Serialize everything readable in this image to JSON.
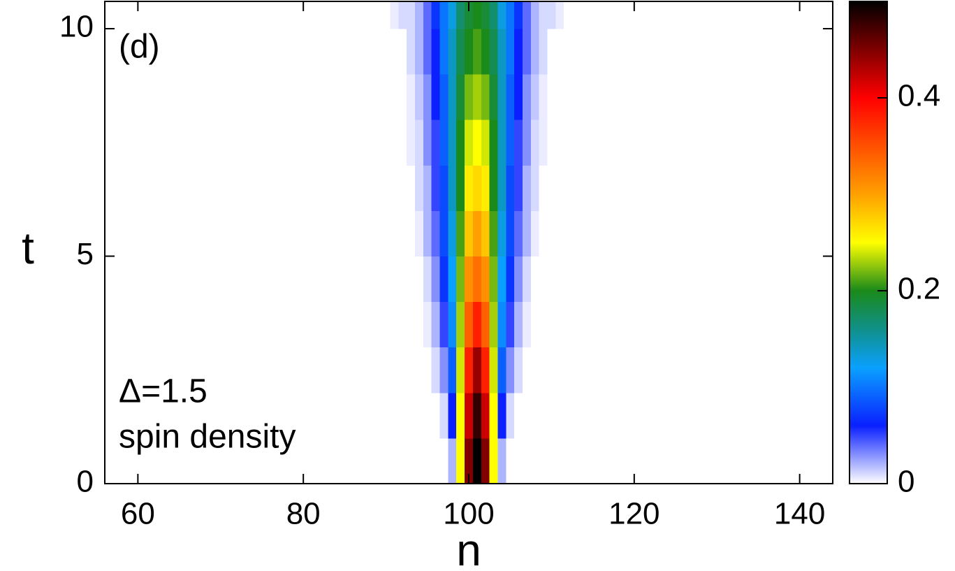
{
  "chart_data": {
    "type": "heatmap",
    "annotations": [
      "(d)",
      "Δ=1.5",
      "spin density"
    ],
    "x_label": "n",
    "y_label": "t",
    "xlim": [
      56,
      144
    ],
    "xticks": [
      60,
      80,
      100,
      120,
      140
    ],
    "ylim": [
      0,
      10.6
    ],
    "yticks": [
      0,
      5,
      10
    ],
    "x": [
      90,
      91,
      92,
      93,
      94,
      95,
      96,
      97,
      98,
      99,
      100,
      101,
      102,
      103,
      104,
      105,
      106,
      107,
      108,
      109,
      110,
      111,
      112
    ],
    "y": [
      0,
      1,
      2,
      3,
      4,
      5,
      6,
      7,
      8,
      9,
      10
    ],
    "z": [
      [
        0,
        0,
        0,
        0,
        0,
        0,
        0,
        0,
        0.02,
        0.25,
        0.45,
        0.5,
        0.45,
        0.25,
        0.02,
        0,
        0,
        0,
        0,
        0,
        0,
        0,
        0
      ],
      [
        0,
        0,
        0,
        0,
        0,
        0,
        0,
        0.01,
        0.06,
        0.25,
        0.42,
        0.48,
        0.42,
        0.25,
        0.06,
        0.01,
        0,
        0,
        0,
        0,
        0,
        0,
        0
      ],
      [
        0,
        0,
        0,
        0,
        0,
        0,
        0.01,
        0.03,
        0.09,
        0.24,
        0.38,
        0.44,
        0.38,
        0.24,
        0.09,
        0.03,
        0.01,
        0,
        0,
        0,
        0,
        0,
        0
      ],
      [
        0,
        0,
        0,
        0,
        0,
        0.005,
        0.02,
        0.05,
        0.11,
        0.23,
        0.34,
        0.38,
        0.34,
        0.23,
        0.11,
        0.05,
        0.02,
        0.005,
        0,
        0,
        0,
        0,
        0
      ],
      [
        0,
        0,
        0,
        0,
        0,
        0.01,
        0.03,
        0.07,
        0.12,
        0.22,
        0.31,
        0.33,
        0.31,
        0.22,
        0.12,
        0.07,
        0.03,
        0.01,
        0,
        0,
        0,
        0,
        0
      ],
      [
        0,
        0,
        0,
        0,
        0.005,
        0.02,
        0.04,
        0.08,
        0.13,
        0.21,
        0.28,
        0.3,
        0.28,
        0.21,
        0.13,
        0.08,
        0.04,
        0.02,
        0.005,
        0,
        0,
        0,
        0
      ],
      [
        0,
        0,
        0,
        0,
        0.01,
        0.02,
        0.05,
        0.08,
        0.14,
        0.2,
        0.26,
        0.27,
        0.26,
        0.2,
        0.14,
        0.08,
        0.05,
        0.02,
        0.01,
        0,
        0,
        0,
        0
      ],
      [
        0,
        0,
        0,
        0.005,
        0.01,
        0.03,
        0.05,
        0.09,
        0.14,
        0.2,
        0.24,
        0.25,
        0.24,
        0.2,
        0.14,
        0.09,
        0.05,
        0.03,
        0.01,
        0.005,
        0,
        0,
        0
      ],
      [
        0,
        0,
        0,
        0.005,
        0.015,
        0.03,
        0.06,
        0.09,
        0.14,
        0.19,
        0.22,
        0.23,
        0.22,
        0.19,
        0.14,
        0.09,
        0.06,
        0.03,
        0.015,
        0.005,
        0,
        0,
        0
      ],
      [
        0,
        0,
        0,
        0.01,
        0.02,
        0.04,
        0.06,
        0.1,
        0.14,
        0.18,
        0.2,
        0.21,
        0.2,
        0.18,
        0.14,
        0.1,
        0.06,
        0.04,
        0.02,
        0.01,
        0,
        0,
        0
      ],
      [
        0,
        0.005,
        0.01,
        0.01,
        0.02,
        0.04,
        0.07,
        0.1,
        0.13,
        0.17,
        0.19,
        0.2,
        0.19,
        0.17,
        0.13,
        0.1,
        0.07,
        0.04,
        0.02,
        0.01,
        0.01,
        0.005,
        0
      ]
    ],
    "zlim": [
      0,
      0.5
    ],
    "zticks": [
      0,
      0.2,
      0.4
    ],
    "colormap": [
      {
        "value": 0,
        "color": "#ffffff"
      },
      {
        "value": 0.06,
        "color": "#0a20ff"
      },
      {
        "value": 0.12,
        "color": "#0aa0ff"
      },
      {
        "value": 0.16,
        "color": "#10908a"
      },
      {
        "value": 0.2,
        "color": "#1a8a1a"
      },
      {
        "value": 0.25,
        "color": "#ffff00"
      },
      {
        "value": 0.3,
        "color": "#ffa000"
      },
      {
        "value": 0.4,
        "color": "#ff0000"
      },
      {
        "value": 0.5,
        "color": "#000000"
      }
    ]
  }
}
